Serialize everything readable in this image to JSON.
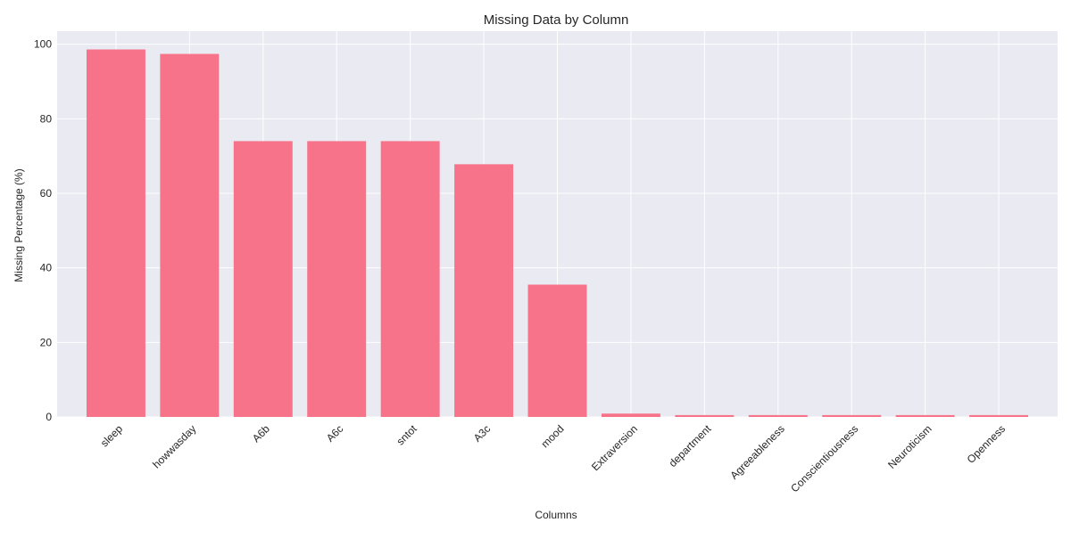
{
  "colors": {
    "bar": "#f7738a",
    "plot_background": "#eaeaf2",
    "grid": "#ffffff",
    "text": "#262626"
  },
  "chart_data": {
    "type": "bar",
    "title": "Missing Data by Column",
    "xlabel": "Columns",
    "ylabel": "Missing Percentage (%)",
    "ylim": [
      0,
      103.5
    ],
    "yticks": [
      0,
      20,
      40,
      60,
      80,
      100
    ],
    "grid": true,
    "categories": [
      "sleep",
      "howwasday",
      "A6b",
      "A6c",
      "sntot",
      "A3c",
      "mood",
      "Extraversion",
      "department",
      "Agreeableness",
      "Conscientiousness",
      "Neuroticism",
      "Openness"
    ],
    "values": [
      98.6,
      97.4,
      74.0,
      74.0,
      74.0,
      67.8,
      35.5,
      0.9,
      0.5,
      0.5,
      0.5,
      0.5,
      0.5
    ]
  }
}
